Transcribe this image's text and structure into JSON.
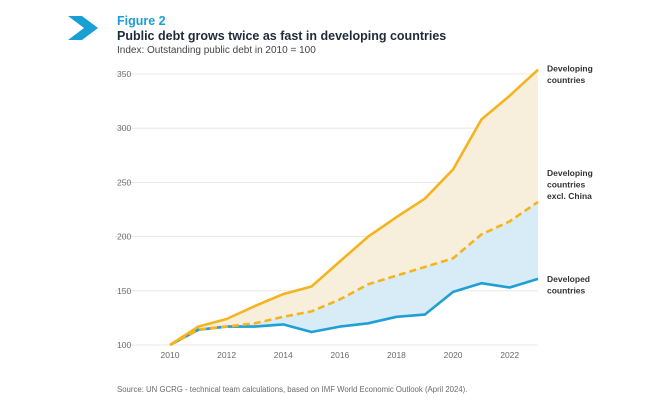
{
  "figure": {
    "label": "Figure 2",
    "title": "Public debt grows twice as fast in developing countries",
    "subtitle": "Index: Outstanding public debt in 2010 = 100",
    "source": "Source: UN GCRG - technical team calculations, based on IMF World Economic Outlook (April 2024)."
  },
  "colors": {
    "accent": "#1a9fd4",
    "developing": "#f5b41e",
    "developing_fill": "#f7efdc",
    "developed": "#1f9fd6",
    "developed_fill": "#d7ecf7",
    "grid": "#e3e3e3"
  },
  "chart_data": {
    "type": "line",
    "x": [
      2010,
      2011,
      2012,
      2013,
      2014,
      2015,
      2016,
      2017,
      2018,
      2019,
      2020,
      2021,
      2022,
      2023
    ],
    "xticks": [
      "2010",
      "2012",
      "2014",
      "2016",
      "2018",
      "2020",
      "2022"
    ],
    "yticks": [
      "100",
      "150",
      "200",
      "250",
      "300",
      "350"
    ],
    "ylim": [
      100,
      350
    ],
    "xlim": [
      2010,
      2023
    ],
    "grid": true,
    "series": [
      {
        "name": "Developing countries",
        "label_lines": [
          "Developing",
          "countries"
        ],
        "style": "solid",
        "values": [
          100,
          117,
          124,
          136,
          147,
          154,
          177,
          200,
          218,
          235,
          262,
          308,
          330,
          354
        ]
      },
      {
        "name": "Developing countries excl. China",
        "label_lines": [
          "Developing",
          "countries",
          "excl. China"
        ],
        "style": "dashed",
        "values": [
          100,
          114,
          117,
          120,
          126,
          131,
          142,
          156,
          164,
          172,
          180,
          202,
          214,
          232
        ]
      },
      {
        "name": "Developed countries",
        "label_lines": [
          "Developed",
          "countries"
        ],
        "style": "solid",
        "values": [
          100,
          114,
          117,
          117,
          119,
          112,
          117,
          120,
          126,
          128,
          149,
          157,
          153,
          161
        ]
      }
    ]
  }
}
